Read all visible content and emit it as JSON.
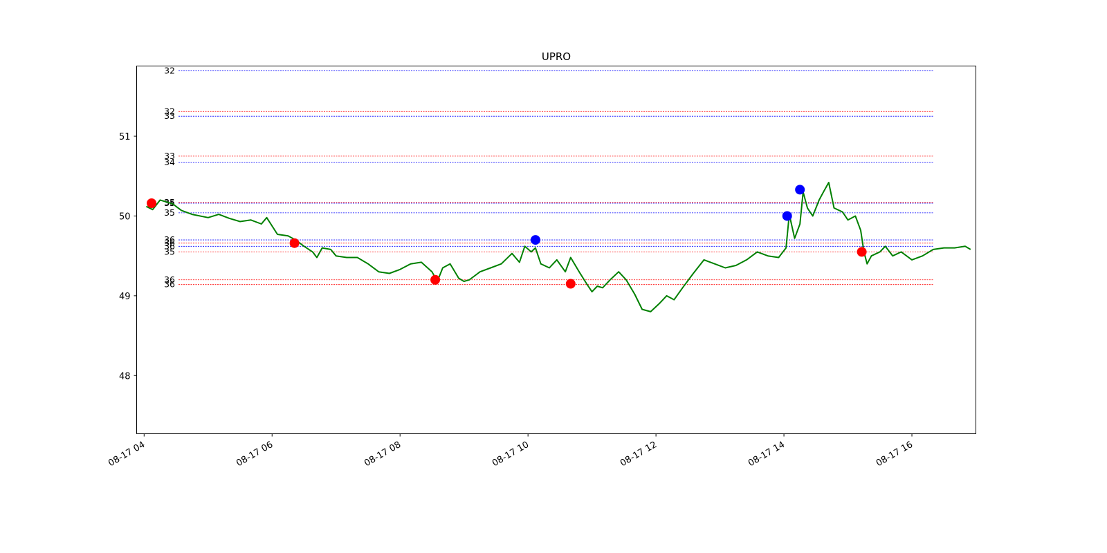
{
  "chart_data": {
    "type": "line",
    "title": "UPRO",
    "xlabel": "",
    "ylabel": "",
    "xlim": [
      "2023-08-17 03:53",
      "2023-08-17 17:00"
    ],
    "ylim": [
      47.27,
      51.88
    ],
    "grid": false,
    "x_ticks": [
      "08-17 04",
      "08-17 06",
      "08-17 08",
      "08-17 10",
      "08-17 12",
      "08-17 14",
      "08-17 16"
    ],
    "x_tick_times": [
      "2023-08-17 04:00",
      "2023-08-17 06:00",
      "2023-08-17 08:00",
      "2023-08-17 10:00",
      "2023-08-17 12:00",
      "2023-08-17 14:00",
      "2023-08-17 16:00"
    ],
    "y_ticks": [
      48,
      49,
      50,
      51
    ],
    "series": [
      {
        "color": "#008000",
        "x": [
          "2023-08-17 04:02",
          "2023-08-17 04:08",
          "2023-08-17 04:15",
          "2023-08-17 04:20",
          "2023-08-17 04:27",
          "2023-08-17 04:35",
          "2023-08-17 04:45",
          "2023-08-17 05:00",
          "2023-08-17 05:10",
          "2023-08-17 05:20",
          "2023-08-17 05:30",
          "2023-08-17 05:40",
          "2023-08-17 05:50",
          "2023-08-17 05:55",
          "2023-08-17 06:05",
          "2023-08-17 06:15",
          "2023-08-17 06:22",
          "2023-08-17 06:30",
          "2023-08-17 06:38",
          "2023-08-17 06:42",
          "2023-08-17 06:47",
          "2023-08-17 06:55",
          "2023-08-17 07:00",
          "2023-08-17 07:10",
          "2023-08-17 07:20",
          "2023-08-17 07:30",
          "2023-08-17 07:40",
          "2023-08-17 07:50",
          "2023-08-17 08:00",
          "2023-08-17 08:10",
          "2023-08-17 08:20",
          "2023-08-17 08:30",
          "2023-08-17 08:35",
          "2023-08-17 08:40",
          "2023-08-17 08:47",
          "2023-08-17 08:55",
          "2023-08-17 09:00",
          "2023-08-17 09:05",
          "2023-08-17 09:10",
          "2023-08-17 09:15",
          "2023-08-17 09:25",
          "2023-08-17 09:35",
          "2023-08-17 09:45",
          "2023-08-17 09:52",
          "2023-08-17 09:57",
          "2023-08-17 10:03",
          "2023-08-17 10:07",
          "2023-08-17 10:12",
          "2023-08-17 10:20",
          "2023-08-17 10:27",
          "2023-08-17 10:35",
          "2023-08-17 10:40",
          "2023-08-17 10:48",
          "2023-08-17 10:55",
          "2023-08-17 11:00",
          "2023-08-17 11:05",
          "2023-08-17 11:10",
          "2023-08-17 11:17",
          "2023-08-17 11:25",
          "2023-08-17 11:32",
          "2023-08-17 11:40",
          "2023-08-17 11:47",
          "2023-08-17 11:55",
          "2023-08-17 12:03",
          "2023-08-17 12:10",
          "2023-08-17 12:17",
          "2023-08-17 12:25",
          "2023-08-17 12:35",
          "2023-08-17 12:45",
          "2023-08-17 12:55",
          "2023-08-17 13:05",
          "2023-08-17 13:15",
          "2023-08-17 13:25",
          "2023-08-17 13:35",
          "2023-08-17 13:45",
          "2023-08-17 13:55",
          "2023-08-17 14:02",
          "2023-08-17 14:05",
          "2023-08-17 14:10",
          "2023-08-17 14:15",
          "2023-08-17 14:18",
          "2023-08-17 14:22",
          "2023-08-17 14:27",
          "2023-08-17 14:33",
          "2023-08-17 14:37",
          "2023-08-17 14:42",
          "2023-08-17 14:47",
          "2023-08-17 14:55",
          "2023-08-17 15:00",
          "2023-08-17 15:07",
          "2023-08-17 15:12",
          "2023-08-17 15:15",
          "2023-08-17 15:18",
          "2023-08-17 15:22",
          "2023-08-17 15:30",
          "2023-08-17 15:35",
          "2023-08-17 15:42",
          "2023-08-17 15:50",
          "2023-08-17 16:00",
          "2023-08-17 16:10",
          "2023-08-17 16:20",
          "2023-08-17 16:30",
          "2023-08-17 16:40",
          "2023-08-17 16:50",
          "2023-08-17 16:55"
        ],
        "y": [
          50.12,
          50.08,
          50.2,
          50.18,
          50.15,
          50.07,
          50.02,
          49.98,
          50.02,
          49.97,
          49.93,
          49.95,
          49.9,
          49.98,
          49.77,
          49.75,
          49.7,
          49.62,
          49.55,
          49.48,
          49.6,
          49.58,
          49.5,
          49.48,
          49.48,
          49.4,
          49.3,
          49.28,
          49.33,
          49.4,
          49.42,
          49.3,
          49.18,
          49.35,
          49.4,
          49.22,
          49.18,
          49.2,
          49.25,
          49.3,
          49.35,
          49.4,
          49.53,
          49.42,
          49.62,
          49.55,
          49.6,
          49.4,
          49.35,
          49.45,
          49.3,
          49.48,
          49.3,
          49.15,
          49.05,
          49.12,
          49.1,
          49.2,
          49.3,
          49.2,
          49.02,
          48.83,
          48.8,
          48.9,
          49.0,
          48.95,
          49.1,
          49.28,
          49.45,
          49.4,
          49.35,
          49.38,
          49.45,
          49.55,
          49.5,
          49.48,
          49.6,
          50.02,
          49.72,
          49.9,
          50.3,
          50.1,
          50.0,
          50.2,
          50.3,
          50.42,
          50.1,
          50.05,
          49.95,
          50.0,
          49.82,
          49.55,
          49.4,
          49.5,
          49.55,
          49.62,
          49.5,
          49.55,
          49.45,
          49.5,
          49.58,
          49.6,
          49.6,
          49.62,
          49.58
        ]
      }
    ],
    "markers": [
      {
        "color": "#ff0000",
        "x": "2023-08-17 04:07",
        "y": 50.16
      },
      {
        "color": "#ff0000",
        "x": "2023-08-17 06:21",
        "y": 49.66
      },
      {
        "color": "#ff0000",
        "x": "2023-08-17 08:33",
        "y": 49.2
      },
      {
        "color": "#0000ff",
        "x": "2023-08-17 10:07",
        "y": 49.7
      },
      {
        "color": "#ff0000",
        "x": "2023-08-17 10:40",
        "y": 49.15
      },
      {
        "color": "#0000ff",
        "x": "2023-08-17 14:03",
        "y": 50.0
      },
      {
        "color": "#0000ff",
        "x": "2023-08-17 14:15",
        "y": 50.33
      },
      {
        "color": "#ff0000",
        "x": "2023-08-17 15:13",
        "y": 49.55
      }
    ],
    "levels": [
      {
        "label": "32",
        "y": 51.82,
        "color": "#0000ff"
      },
      {
        "label": "32",
        "y": 51.31,
        "color": "#ff0000"
      },
      {
        "label": "33",
        "y": 51.25,
        "color": "#0000ff"
      },
      {
        "label": "33",
        "y": 50.75,
        "color": "#ff0000"
      },
      {
        "label": "34",
        "y": 50.67,
        "color": "#0000ff"
      },
      {
        "label": "35",
        "y": 50.17,
        "color": "#ff0000"
      },
      {
        "label": "35",
        "y": 50.16,
        "color": "#0000ff"
      },
      {
        "label": "35",
        "y": 50.04,
        "color": "#0000ff"
      },
      {
        "label": "36",
        "y": 49.7,
        "color": "#0000ff"
      },
      {
        "label": "36",
        "y": 49.66,
        "color": "#ff0000"
      },
      {
        "label": "36",
        "y": 49.62,
        "color": "#0000ff"
      },
      {
        "label": "35",
        "y": 49.55,
        "color": "#ff0000"
      },
      {
        "label": "36",
        "y": 49.2,
        "color": "#ff0000"
      },
      {
        "label": "36",
        "y": 49.14,
        "color": "#ff0000"
      }
    ]
  }
}
